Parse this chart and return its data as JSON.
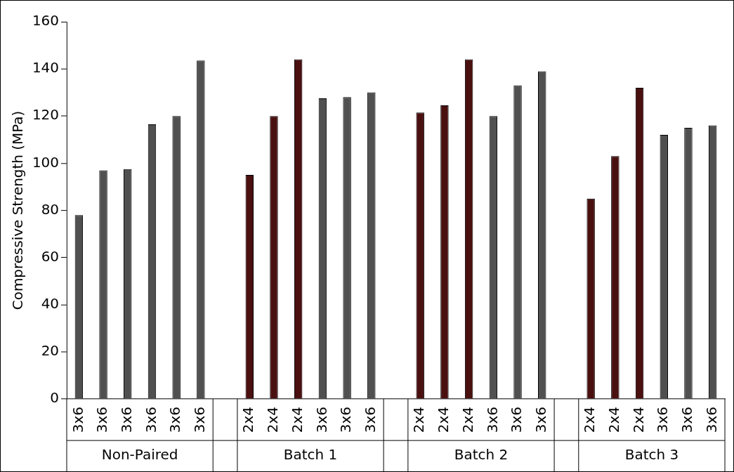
{
  "chart_data": {
    "type": "bar",
    "ylabel": "Compressive Strength (MPa)",
    "categories": [
      "3x6",
      "3x6",
      "3x6",
      "3x6",
      "3x6",
      "3x6",
      null,
      "2x4",
      "2x4",
      "2x4",
      "3x6",
      "3x6",
      "3x6",
      null,
      "2x4",
      "2x4",
      "2x4",
      "3x6",
      "3x6",
      "3x6",
      null,
      "2x4",
      "2x4",
      "2x4",
      "3x6",
      "3x6",
      "3x6"
    ],
    "values": [
      78,
      97,
      97.5,
      116.5,
      120,
      143.5,
      null,
      95,
      120,
      144,
      127.5,
      128,
      130,
      null,
      121.5,
      124.5,
      144,
      120,
      133,
      139,
      null,
      85,
      103,
      132,
      112,
      115,
      116
    ],
    "colors": [
      "#505050",
      "#505050",
      "#505050",
      "#505050",
      "#505050",
      "#505050",
      "#505050",
      "#4a1010",
      "#4a1010",
      "#4a1010",
      "#505050",
      "#505050",
      "#505050",
      "#505050",
      "#4a1010",
      "#4a1010",
      "#4a1010",
      "#505050",
      "#505050",
      "#505050",
      "#505050",
      "#4a1010",
      "#4a1010",
      "#4a1010",
      "#505050",
      "#505050",
      "#505050"
    ],
    "ylim": [
      0,
      160
    ],
    "yticks": [
      0,
      20,
      40,
      60,
      80,
      100,
      120,
      140,
      160
    ],
    "grid": false,
    "legend": false,
    "annotations": [
      "Non-Paired",
      "Batch 1",
      "Batch 2",
      "Batch 3"
    ]
  }
}
